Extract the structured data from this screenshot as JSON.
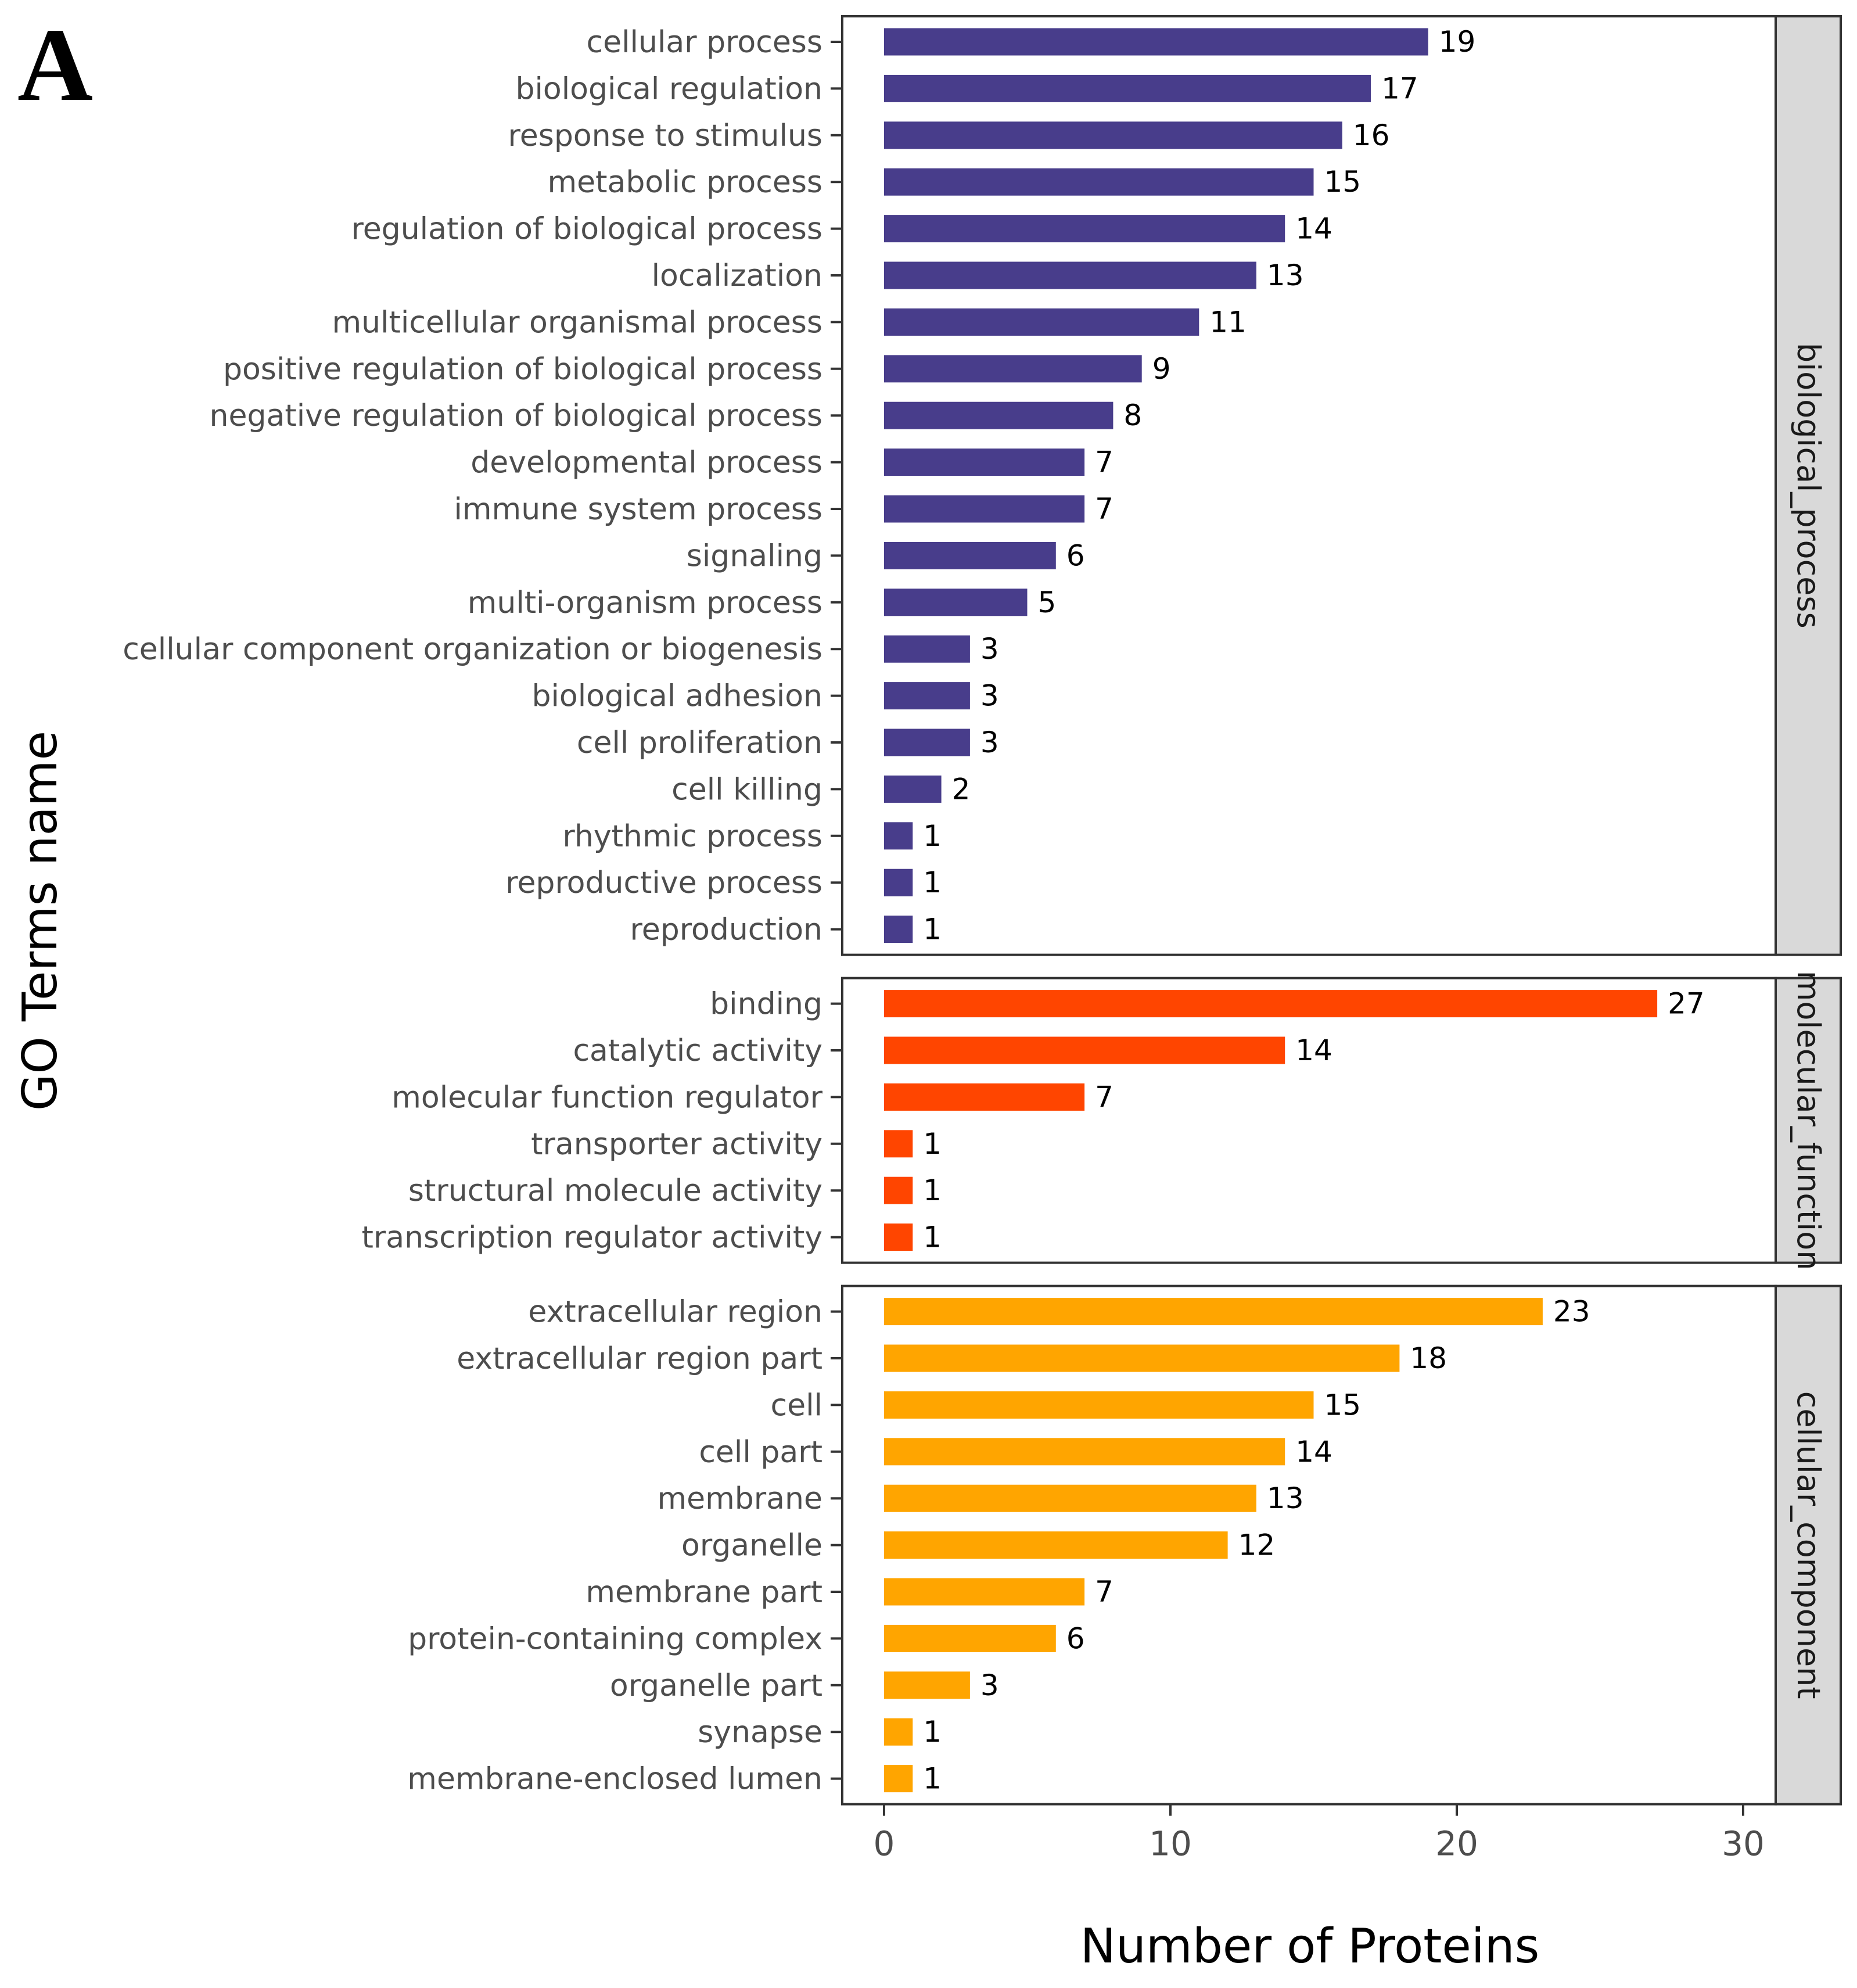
{
  "panel_letter": "A",
  "chart_data": {
    "type": "bar",
    "orientation": "horizontal",
    "xlabel": "Number of Proteins",
    "ylabel": "GO Terms name",
    "xlim": [
      0,
      30
    ],
    "xticks": [
      0,
      10,
      20,
      30
    ],
    "grid": false,
    "facets": [
      {
        "name": "biological_process",
        "color": "#483d8b",
        "categories": [
          "cellular process",
          "biological regulation",
          "response to stimulus",
          "metabolic process",
          "regulation of biological process",
          "localization",
          "multicellular organismal process",
          "positive regulation of biological process",
          "negative regulation of biological process",
          "developmental process",
          "immune system process",
          "signaling",
          "multi-organism process",
          "cellular component organization or biogenesis",
          "biological adhesion",
          "cell proliferation",
          "cell killing",
          "rhythmic process",
          "reproductive process",
          "reproduction"
        ],
        "values": [
          19,
          17,
          16,
          15,
          14,
          13,
          11,
          9,
          8,
          7,
          7,
          6,
          5,
          3,
          3,
          3,
          2,
          1,
          1,
          1
        ]
      },
      {
        "name": "molecular_function",
        "color": "#ff4500",
        "categories": [
          "binding",
          "catalytic activity",
          "molecular function regulator",
          "transporter activity",
          "structural molecule activity",
          "transcription regulator activity"
        ],
        "values": [
          27,
          14,
          7,
          1,
          1,
          1
        ]
      },
      {
        "name": "cellular_component",
        "color": "#ffa500",
        "categories": [
          "extracellular region",
          "extracellular region part",
          "cell",
          "cell part",
          "membrane",
          "organelle",
          "membrane part",
          "protein-containing complex",
          "organelle part",
          "synapse",
          "membrane-enclosed lumen"
        ],
        "values": [
          23,
          18,
          15,
          14,
          13,
          12,
          7,
          6,
          3,
          1,
          1
        ]
      }
    ]
  }
}
